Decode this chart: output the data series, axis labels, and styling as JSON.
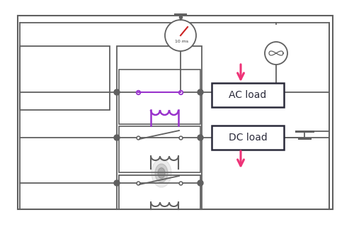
{
  "bg_color": "#ffffff",
  "line_color": "#606060",
  "purple_color": "#9933cc",
  "pink_color": "#ee3377",
  "dark_color": "#2a2a3a",
  "ac_label": "AC load",
  "dc_label": "DC load",
  "timer_label": "10 ms"
}
